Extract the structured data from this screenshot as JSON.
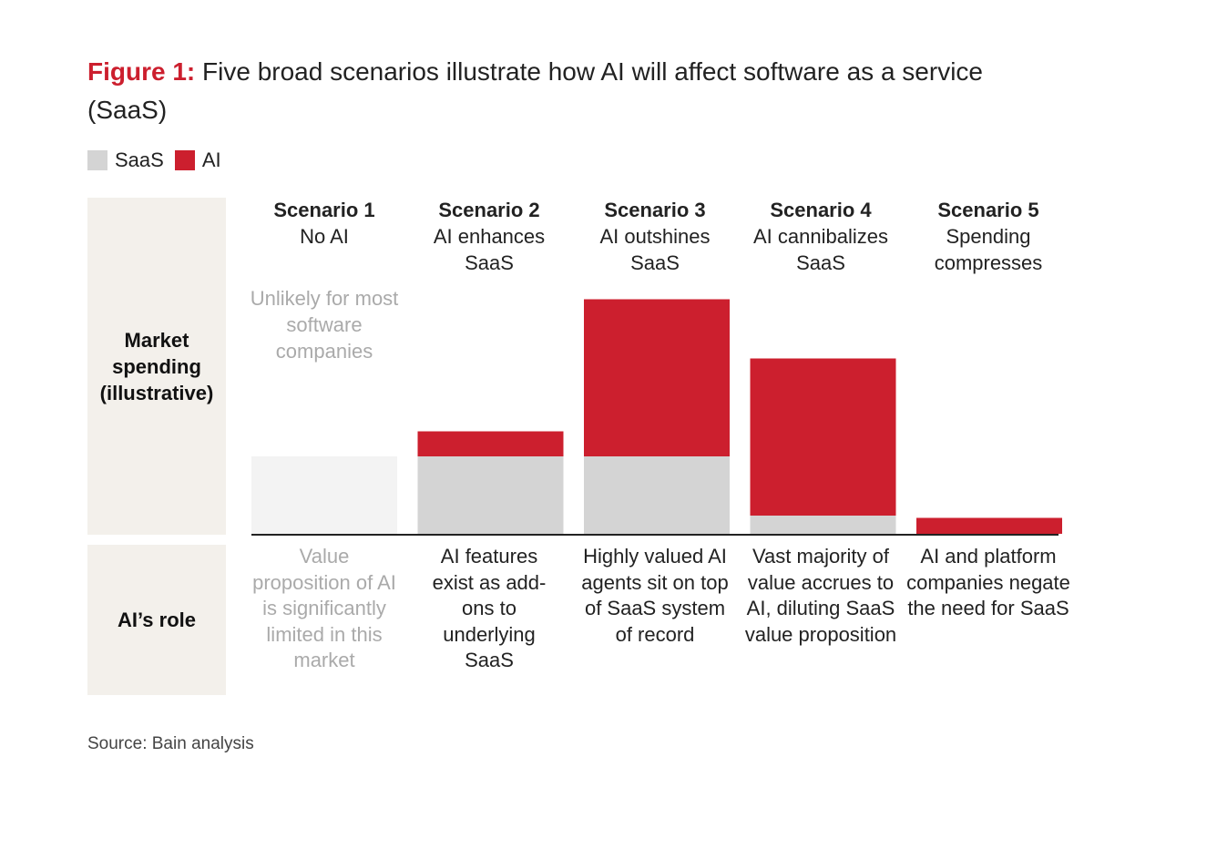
{
  "title": {
    "figure_label": "Figure 1:",
    "text": "Five broad scenarios illustrate how AI will affect software as a service (SaaS)"
  },
  "legend": [
    {
      "label": "SaaS",
      "color": "#d4d4d4"
    },
    {
      "label": "AI",
      "color": "#cc1f2e"
    }
  ],
  "row_labels": {
    "market": "Market spending (illustrative)",
    "role": "AI’s role"
  },
  "colors": {
    "saas": "#d4d4d4",
    "ai": "#cc1f2e",
    "saas_faded": "#f3f3f3",
    "axis": "#222222",
    "label_bg": "#f3f0eb"
  },
  "chart_data": {
    "type": "bar",
    "stacked": true,
    "title": "Five broad scenarios illustrate how AI will affect software as a service (SaaS)",
    "ylabel": "Market spending (illustrative)",
    "ylim": [
      0,
      100
    ],
    "categories": [
      "Scenario 1",
      "Scenario 2",
      "Scenario 3",
      "Scenario 4",
      "Scenario 5"
    ],
    "subtitles": [
      "No AI",
      "AI enhances SaaS",
      "AI outshines SaaS",
      "AI cannibalizes SaaS",
      "Spending compresses"
    ],
    "series": [
      {
        "name": "SaaS",
        "values": [
          34,
          34,
          34,
          8,
          0
        ]
      },
      {
        "name": "AI",
        "values": [
          0,
          11,
          69,
          69,
          7
        ]
      }
    ],
    "faded_categories": [
      "Scenario 1"
    ],
    "notes": {
      "Scenario 1": "Unlikely for most software companies"
    }
  },
  "roles": [
    "Value proposition of AI is significantly limited in this market",
    "AI features exist as add-ons to underlying SaaS",
    "Highly valued AI agents sit on top of SaaS system of record",
    "Vast majority of value accrues to AI, diluting SaaS value proposition",
    "AI and platform companies negate the need for SaaS"
  ],
  "source": "Source: Bain analysis"
}
